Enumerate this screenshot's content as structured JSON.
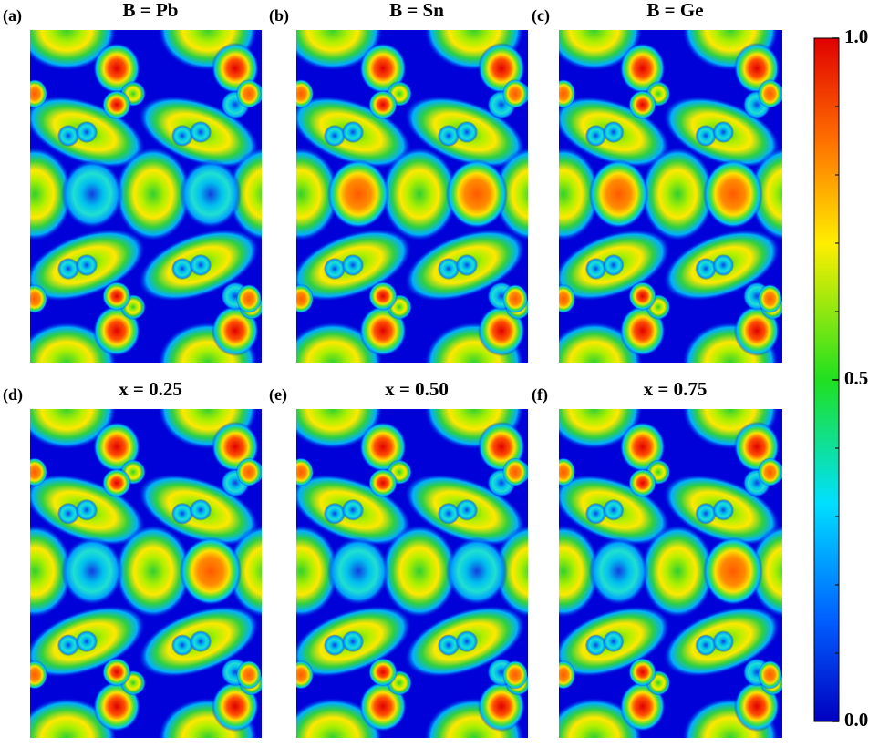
{
  "panels": [
    {
      "label": "(a)",
      "title": "B = Pb"
    },
    {
      "label": "(b)",
      "title": "B = Sn"
    },
    {
      "label": "(c)",
      "title": "B = Ge"
    },
    {
      "label": "(d)",
      "title": "x = 0.25"
    },
    {
      "label": "(e)",
      "title": "x = 0.50"
    },
    {
      "label": "(f)",
      "title": "x = 0.75"
    }
  ],
  "colorbar": {
    "ticks": [
      {
        "value": 0,
        "label": "0.0"
      },
      {
        "value": 0.5,
        "label": "0.5"
      },
      {
        "value": 1,
        "label": "1.0"
      }
    ]
  }
}
